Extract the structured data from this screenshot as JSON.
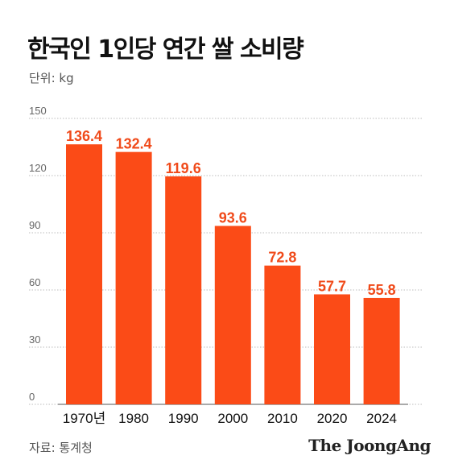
{
  "header": {
    "title": "한국인 1인당 연간 쌀 소비량",
    "unit_label": "단위: kg"
  },
  "footer": {
    "source": "자료: 통계청",
    "brand": "The JoongAng"
  },
  "colors": {
    "bar": "#fb4b17",
    "value_label": "#f04a1a",
    "grid": "#bdbdbd"
  },
  "chart_data": {
    "type": "bar",
    "title": "한국인 1인당 연간 쌀 소비량",
    "xlabel": "",
    "ylabel": "",
    "categories": [
      "1970년",
      "1980",
      "1990",
      "2000",
      "2010",
      "2020",
      "2024"
    ],
    "values": [
      136.4,
      132.4,
      119.6,
      93.6,
      72.8,
      57.7,
      55.8
    ],
    "value_labels": [
      "136.4",
      "132.4",
      "119.6",
      "93.6",
      "72.8",
      "57.7",
      "55.8"
    ],
    "ylim": [
      0,
      150
    ],
    "yticks": [
      0,
      30,
      60,
      90,
      120,
      150
    ],
    "grid": true,
    "legend": "none"
  }
}
